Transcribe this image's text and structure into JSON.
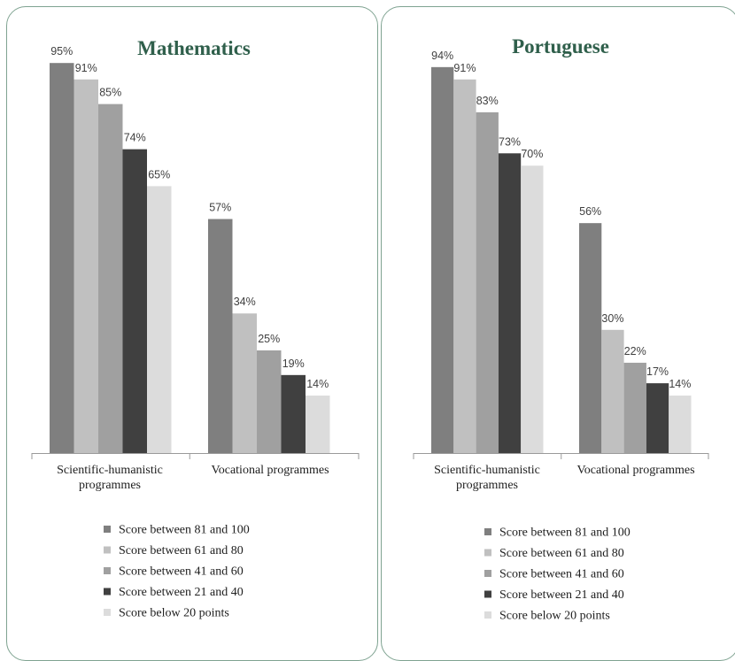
{
  "chart_data": [
    {
      "type": "bar",
      "title": "Mathematics",
      "categories": [
        [
          "Scientific-humanistic",
          "programmes"
        ],
        [
          "Vocational programmes"
        ]
      ],
      "series": [
        {
          "name": "Score between 81 and 100",
          "values": [
            95,
            57
          ],
          "labels": [
            "95%",
            "57%"
          ],
          "color": "#7f7f7f"
        },
        {
          "name": "Score between 61 and 80",
          "values": [
            91,
            34
          ],
          "labels": [
            "91%",
            "34%"
          ],
          "color": "#c0c0c0"
        },
        {
          "name": "Score between 41 and 60",
          "values": [
            85,
            25
          ],
          "labels": [
            "85%",
            "25%"
          ],
          "color": "#a0a0a0"
        },
        {
          "name": "Score between 21 and 40",
          "values": [
            74,
            19
          ],
          "labels": [
            "74%",
            "19%"
          ],
          "color": "#404040"
        },
        {
          "name": "Score below 20 points",
          "values": [
            65,
            14
          ],
          "labels": [
            "65%",
            "14%"
          ],
          "color": "#dcdcdc"
        }
      ],
      "ylim": [
        0,
        100
      ],
      "grid": false,
      "legend_position": "bottom"
    },
    {
      "type": "bar",
      "title": "Portuguese",
      "categories": [
        [
          "Scientific-humanistic",
          "programmes"
        ],
        [
          "Vocational programmes"
        ]
      ],
      "series": [
        {
          "name": "Score between 81 and 100",
          "values": [
            94,
            56
          ],
          "labels": [
            "94%",
            "56%"
          ],
          "color": "#7f7f7f"
        },
        {
          "name": "Score between 61 and 80",
          "values": [
            91,
            30
          ],
          "labels": [
            "91%",
            "30%"
          ],
          "color": "#c0c0c0"
        },
        {
          "name": "Score between 41 and 60",
          "values": [
            83,
            22
          ],
          "labels": [
            "83%",
            "22%"
          ],
          "color": "#a0a0a0"
        },
        {
          "name": "Score between 21 and 40",
          "values": [
            73,
            17
          ],
          "labels": [
            "73%",
            "17%"
          ],
          "color": "#404040"
        },
        {
          "name": "Score below 20 points",
          "values": [
            70,
            14
          ],
          "labels": [
            "70%",
            "14%"
          ],
          "color": "#dcdcdc"
        }
      ],
      "ylim": [
        0,
        100
      ],
      "grid": false,
      "legend_position": "bottom"
    }
  ]
}
